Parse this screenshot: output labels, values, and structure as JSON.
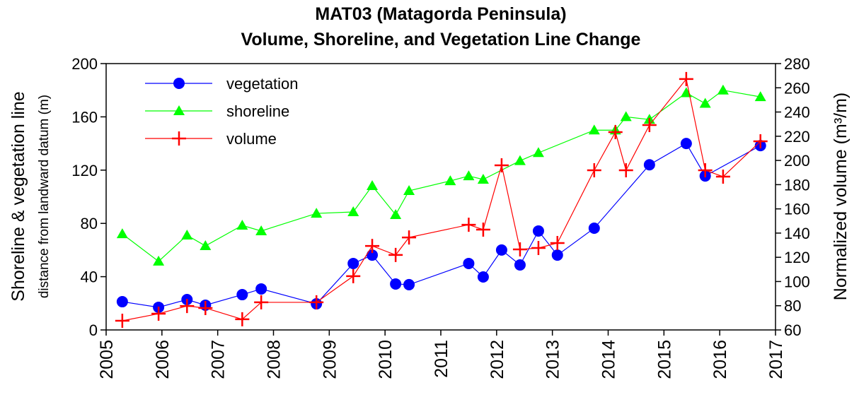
{
  "chart_data": {
    "type": "line",
    "title": "MAT03 (Matagorda Peninsula)",
    "subtitle": "Volume, Shoreline, and Vegetation Line Change",
    "y_label": "Shoreline & vegetation line",
    "y_label_sub": "distance from landward datum (m)",
    "y2_label": "Normalized volume (m³/m)",
    "xlim": [
      2005,
      2017
    ],
    "xticks": [
      2005,
      2006,
      2007,
      2008,
      2009,
      2010,
      2011,
      2012,
      2013,
      2014,
      2015,
      2016,
      2017
    ],
    "ylim": [
      0,
      200
    ],
    "yticks": [
      0,
      40,
      80,
      120,
      160,
      200
    ],
    "y2lim": [
      60,
      280
    ],
    "y2ticks": [
      60,
      80,
      100,
      120,
      140,
      160,
      180,
      200,
      220,
      240,
      260,
      280
    ],
    "legend": "upper left",
    "series": [
      {
        "name": "vegetation",
        "color": "#0000ff",
        "marker": "circle",
        "x": [
          2005.29,
          2005.94,
          2006.45,
          2006.78,
          2007.44,
          2007.78,
          2008.77,
          2009.43,
          2009.77,
          2010.19,
          2010.43,
          2011.5,
          2011.76,
          2012.09,
          2012.42,
          2012.75,
          2013.09,
          2013.75,
          2014.74,
          2015.4,
          2015.74,
          2016.73
        ],
        "values": [
          21.2,
          17,
          22.8,
          18.6,
          26.5,
          30.8,
          19.6,
          49.9,
          56.2,
          34.5,
          34,
          49.9,
          39.8,
          60,
          48.8,
          74.3,
          56.2,
          76.4,
          124,
          140,
          115.6,
          138.4
        ]
      },
      {
        "name": "shoreline",
        "color": "#00ff00",
        "marker": "triangle",
        "x": [
          2005.29,
          2005.94,
          2006.45,
          2006.78,
          2007.44,
          2007.78,
          2008.77,
          2009.43,
          2009.77,
          2010.19,
          2010.43,
          2011.17,
          2011.5,
          2011.76,
          2012.42,
          2012.75,
          2013.75,
          2014.13,
          2014.32,
          2014.74,
          2015.4,
          2015.74,
          2016.06,
          2016.73
        ],
        "values": [
          72.1,
          51.5,
          71.1,
          63.1,
          78.5,
          74.3,
          87.5,
          88.6,
          108.2,
          86.5,
          104.5,
          111.9,
          115.6,
          113,
          127,
          133,
          150,
          150,
          160,
          158,
          178,
          170,
          180,
          175
        ]
      },
      {
        "name": "volume",
        "color": "#ff0000",
        "marker": "plus",
        "axis": "y2",
        "x": [
          2005.29,
          2005.94,
          2006.45,
          2006.78,
          2007.44,
          2007.78,
          2008.77,
          2009.43,
          2009.77,
          2010.19,
          2010.43,
          2011.5,
          2011.76,
          2012.09,
          2012.42,
          2012.75,
          2013.09,
          2013.75,
          2014.13,
          2014.32,
          2014.74,
          2015.4,
          2015.74,
          2016.06,
          2016.73
        ],
        "values": [
          67.6,
          73.4,
          79.8,
          78.1,
          68.8,
          82.8,
          82.8,
          104.4,
          129.4,
          121.9,
          136.4,
          146.9,
          142.9,
          196,
          126.5,
          127.7,
          131.8,
          191.9,
          223.4,
          191.9,
          229.2,
          267.2,
          191.9,
          186.6,
          215.8
        ]
      }
    ]
  }
}
